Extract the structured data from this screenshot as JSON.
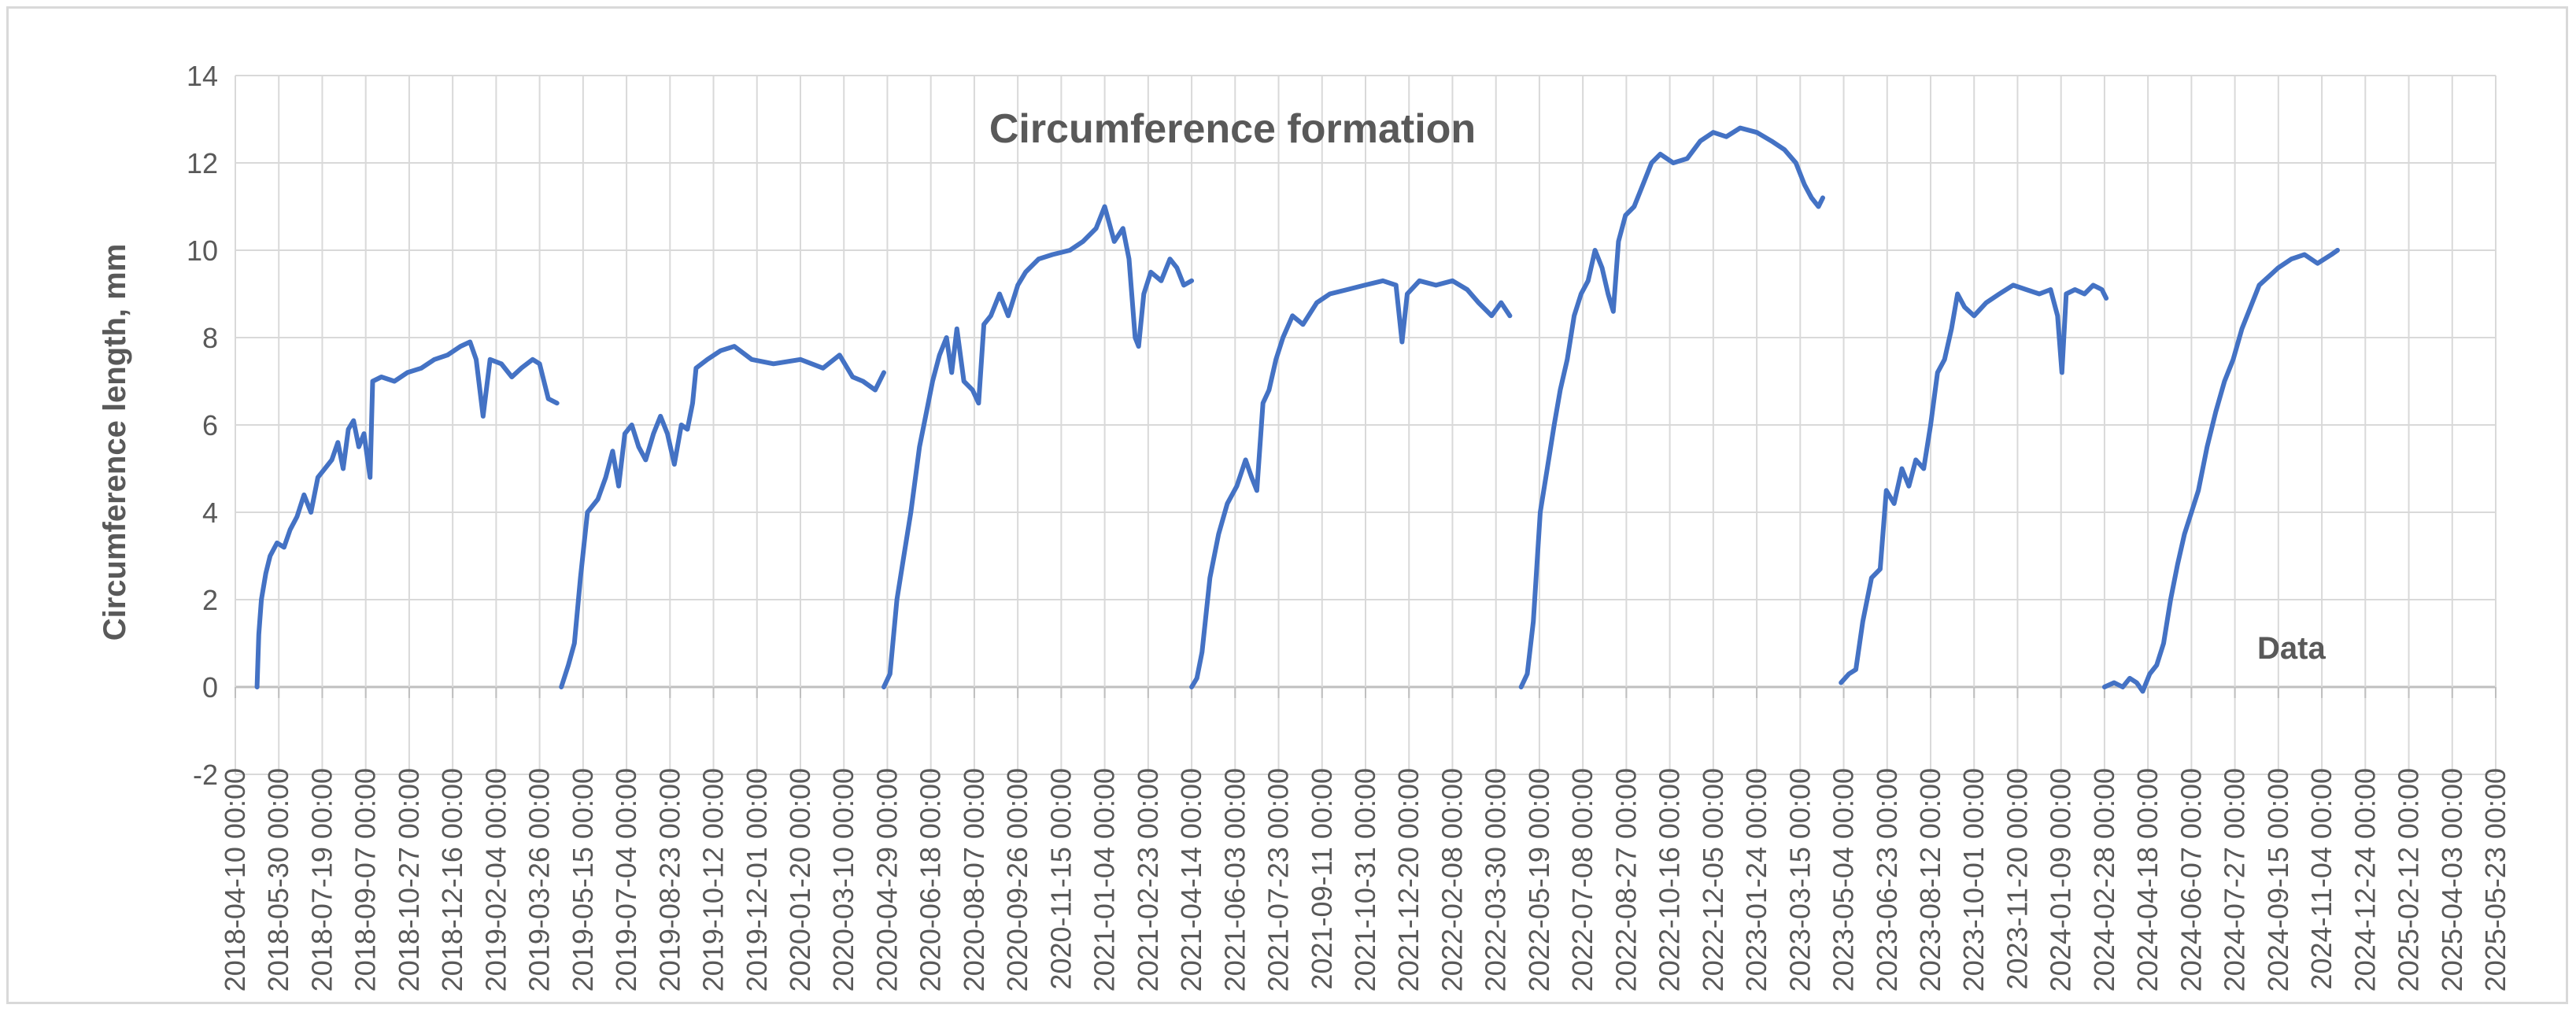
{
  "chart_data": {
    "type": "line",
    "title": "Circumference formation",
    "xlabel": "",
    "ylabel": "Circumference length, mm",
    "annotation": "Data",
    "ylim": [
      -2,
      14
    ],
    "yticks": [
      "-2",
      "0",
      "2",
      "4",
      "6",
      "8",
      "10",
      "12",
      "14"
    ],
    "grid": true,
    "legend": "none",
    "line_color": "#4472c4",
    "x_tick_labels": [
      "2018-04-10 00:00",
      "2018-05-30 00:00",
      "2018-07-19 00:00",
      "2018-09-07 00:00",
      "2018-10-27 00:00",
      "2018-12-16 00:00",
      "2019-02-04 00:00",
      "2019-03-26 00:00",
      "2019-05-15 00:00",
      "2019-07-04 00:00",
      "2019-08-23 00:00",
      "2019-10-12 00:00",
      "2019-12-01 00:00",
      "2020-01-20 00:00",
      "2020-03-10 00:00",
      "2020-04-29 00:00",
      "2020-06-18 00:00",
      "2020-08-07 00:00",
      "2020-09-26 00:00",
      "2020-11-15 00:00",
      "2021-01-04 00:00",
      "2021-02-23 00:00",
      "2021-04-14 00:00",
      "2021-06-03 00:00",
      "2021-07-23 00:00",
      "2021-09-11 00:00",
      "2021-10-31 00:00",
      "2021-12-20 00:00",
      "2022-02-08 00:00",
      "2022-03-30 00:00",
      "2022-05-19 00:00",
      "2022-07-08 00:00",
      "2022-08-27 00:00",
      "2022-10-16 00:00",
      "2022-12-05 00:00",
      "2023-01-24 00:00",
      "2023-03-15 00:00",
      "2023-05-04 00:00",
      "2023-06-23 00:00",
      "2023-08-12 00:00",
      "2023-10-01 00:00",
      "2023-11-20 00:00",
      "2024-01-09 00:00",
      "2024-02-28 00:00",
      "2024-04-18 00:00",
      "2024-06-07 00:00",
      "2024-07-27 00:00",
      "2024-09-15 00:00",
      "2024-11-04 00:00",
      "2024-12-24 00:00",
      "2025-02-12 00:00",
      "2025-04-03 00:00",
      "2025-05-23 00:00"
    ],
    "series": [
      {
        "points": [
          [
            "2018-05-05",
            0.0
          ],
          [
            "2018-05-07",
            1.2
          ],
          [
            "2018-05-10",
            2.0
          ],
          [
            "2018-05-15",
            2.6
          ],
          [
            "2018-05-20",
            3.0
          ],
          [
            "2018-05-28",
            3.3
          ],
          [
            "2018-06-05",
            3.2
          ],
          [
            "2018-06-12",
            3.6
          ],
          [
            "2018-06-20",
            3.9
          ],
          [
            "2018-06-28",
            4.4
          ],
          [
            "2018-07-06",
            4.0
          ],
          [
            "2018-07-14",
            4.8
          ],
          [
            "2018-07-22",
            5.0
          ],
          [
            "2018-07-30",
            5.2
          ],
          [
            "2018-08-06",
            5.6
          ],
          [
            "2018-08-12",
            5.0
          ],
          [
            "2018-08-18",
            5.9
          ],
          [
            "2018-08-24",
            6.1
          ],
          [
            "2018-08-30",
            5.5
          ],
          [
            "2018-09-05",
            5.8
          ],
          [
            "2018-09-12",
            4.8
          ],
          [
            "2018-09-15",
            7.0
          ],
          [
            "2018-09-25",
            7.1
          ],
          [
            "2018-10-10",
            7.0
          ],
          [
            "2018-10-25",
            7.2
          ],
          [
            "2018-11-10",
            7.3
          ],
          [
            "2018-11-25",
            7.5
          ],
          [
            "2018-12-10",
            7.6
          ],
          [
            "2018-12-25",
            7.8
          ],
          [
            "2019-01-05",
            7.9
          ],
          [
            "2019-01-12",
            7.5
          ],
          [
            "2019-01-20",
            6.2
          ],
          [
            "2019-01-28",
            7.5
          ],
          [
            "2019-02-10",
            7.4
          ],
          [
            "2019-02-22",
            7.1
          ],
          [
            "2019-03-05",
            7.3
          ],
          [
            "2019-03-18",
            7.5
          ],
          [
            "2019-03-26",
            7.4
          ],
          [
            "2019-04-05",
            6.6
          ],
          [
            "2019-04-15",
            6.5
          ]
        ]
      },
      {
        "points": [
          [
            "2019-04-20",
            0.0
          ],
          [
            "2019-04-28",
            0.5
          ],
          [
            "2019-05-05",
            1.0
          ],
          [
            "2019-05-12",
            2.5
          ],
          [
            "2019-05-20",
            4.0
          ],
          [
            "2019-06-01",
            4.3
          ],
          [
            "2019-06-10",
            4.8
          ],
          [
            "2019-06-18",
            5.4
          ],
          [
            "2019-06-25",
            4.6
          ],
          [
            "2019-07-02",
            5.8
          ],
          [
            "2019-07-10",
            6.0
          ],
          [
            "2019-07-18",
            5.5
          ],
          [
            "2019-07-26",
            5.2
          ],
          [
            "2019-08-04",
            5.8
          ],
          [
            "2019-08-12",
            6.2
          ],
          [
            "2019-08-20",
            5.8
          ],
          [
            "2019-08-28",
            5.1
          ],
          [
            "2019-09-05",
            6.0
          ],
          [
            "2019-09-12",
            5.9
          ],
          [
            "2019-09-18",
            6.5
          ],
          [
            "2019-09-22",
            7.3
          ],
          [
            "2019-10-05",
            7.5
          ],
          [
            "2019-10-20",
            7.7
          ],
          [
            "2019-11-05",
            7.8
          ],
          [
            "2019-11-25",
            7.5
          ],
          [
            "2019-12-20",
            7.4
          ],
          [
            "2020-01-20",
            7.5
          ],
          [
            "2020-02-15",
            7.3
          ],
          [
            "2020-03-05",
            7.6
          ],
          [
            "2020-03-20",
            7.1
          ],
          [
            "2020-04-01",
            7.0
          ],
          [
            "2020-04-15",
            6.8
          ],
          [
            "2020-04-25",
            7.2
          ]
        ]
      },
      {
        "points": [
          [
            "2020-04-25",
            0.0
          ],
          [
            "2020-05-02",
            0.3
          ],
          [
            "2020-05-10",
            2.0
          ],
          [
            "2020-05-18",
            3.0
          ],
          [
            "2020-05-26",
            4.0
          ],
          [
            "2020-06-05",
            5.5
          ],
          [
            "2020-06-12",
            6.2
          ],
          [
            "2020-06-20",
            7.0
          ],
          [
            "2020-06-28",
            7.6
          ],
          [
            "2020-07-06",
            8.0
          ],
          [
            "2020-07-12",
            7.2
          ],
          [
            "2020-07-18",
            8.2
          ],
          [
            "2020-07-26",
            7.0
          ],
          [
            "2020-08-05",
            6.8
          ],
          [
            "2020-08-12",
            6.5
          ],
          [
            "2020-08-18",
            8.3
          ],
          [
            "2020-08-26",
            8.5
          ],
          [
            "2020-09-05",
            9.0
          ],
          [
            "2020-09-15",
            8.5
          ],
          [
            "2020-09-26",
            9.2
          ],
          [
            "2020-10-05",
            9.5
          ],
          [
            "2020-10-20",
            9.8
          ],
          [
            "2020-11-05",
            9.9
          ],
          [
            "2020-11-25",
            10.0
          ],
          [
            "2020-12-10",
            10.2
          ],
          [
            "2020-12-25",
            10.5
          ],
          [
            "2021-01-04",
            11.0
          ],
          [
            "2021-01-15",
            10.2
          ],
          [
            "2021-01-25",
            10.5
          ],
          [
            "2021-02-01",
            9.8
          ],
          [
            "2021-02-08",
            8.0
          ],
          [
            "2021-02-12",
            7.8
          ],
          [
            "2021-02-18",
            9.0
          ],
          [
            "2021-02-26",
            9.5
          ],
          [
            "2021-03-10",
            9.3
          ],
          [
            "2021-03-20",
            9.8
          ],
          [
            "2021-03-28",
            9.6
          ],
          [
            "2021-04-05",
            9.2
          ],
          [
            "2021-04-14",
            9.3
          ]
        ]
      },
      {
        "points": [
          [
            "2021-04-14",
            0.0
          ],
          [
            "2021-04-20",
            0.2
          ],
          [
            "2021-04-26",
            0.8
          ],
          [
            "2021-05-05",
            2.5
          ],
          [
            "2021-05-15",
            3.5
          ],
          [
            "2021-05-25",
            4.2
          ],
          [
            "2021-06-05",
            4.6
          ],
          [
            "2021-06-15",
            5.2
          ],
          [
            "2021-06-22",
            4.8
          ],
          [
            "2021-06-28",
            4.5
          ],
          [
            "2021-07-05",
            6.5
          ],
          [
            "2021-07-12",
            6.8
          ],
          [
            "2021-07-20",
            7.5
          ],
          [
            "2021-07-28",
            8.0
          ],
          [
            "2021-08-08",
            8.5
          ],
          [
            "2021-08-20",
            8.3
          ],
          [
            "2021-09-05",
            8.8
          ],
          [
            "2021-09-20",
            9.0
          ],
          [
            "2021-10-10",
            9.1
          ],
          [
            "2021-10-30",
            9.2
          ],
          [
            "2021-11-20",
            9.3
          ],
          [
            "2021-12-05",
            9.2
          ],
          [
            "2021-12-12",
            7.9
          ],
          [
            "2021-12-18",
            9.0
          ],
          [
            "2022-01-01",
            9.3
          ],
          [
            "2022-01-20",
            9.2
          ],
          [
            "2022-02-08",
            9.3
          ],
          [
            "2022-02-25",
            9.1
          ],
          [
            "2022-03-10",
            8.8
          ],
          [
            "2022-03-25",
            8.5
          ],
          [
            "2022-04-05",
            8.8
          ],
          [
            "2022-04-15",
            8.5
          ]
        ]
      },
      {
        "points": [
          [
            "2022-04-28",
            0.0
          ],
          [
            "2022-05-05",
            0.3
          ],
          [
            "2022-05-12",
            1.5
          ],
          [
            "2022-05-20",
            4.0
          ],
          [
            "2022-05-28",
            5.0
          ],
          [
            "2022-06-05",
            6.0
          ],
          [
            "2022-06-12",
            6.8
          ],
          [
            "2022-06-20",
            7.5
          ],
          [
            "2022-06-28",
            8.5
          ],
          [
            "2022-07-06",
            9.0
          ],
          [
            "2022-07-14",
            9.3
          ],
          [
            "2022-07-22",
            10.0
          ],
          [
            "2022-07-30",
            9.6
          ],
          [
            "2022-08-06",
            9.0
          ],
          [
            "2022-08-12",
            8.6
          ],
          [
            "2022-08-18",
            10.2
          ],
          [
            "2022-08-26",
            10.8
          ],
          [
            "2022-09-05",
            11.0
          ],
          [
            "2022-09-15",
            11.5
          ],
          [
            "2022-09-25",
            12.0
          ],
          [
            "2022-10-05",
            12.2
          ],
          [
            "2022-10-20",
            12.0
          ],
          [
            "2022-11-05",
            12.1
          ],
          [
            "2022-11-20",
            12.5
          ],
          [
            "2022-12-05",
            12.7
          ],
          [
            "2022-12-20",
            12.6
          ],
          [
            "2023-01-05",
            12.8
          ],
          [
            "2023-01-24",
            12.7
          ],
          [
            "2023-02-10",
            12.5
          ],
          [
            "2023-02-25",
            12.3
          ],
          [
            "2023-03-10",
            12.0
          ],
          [
            "2023-03-20",
            11.5
          ],
          [
            "2023-03-28",
            11.2
          ],
          [
            "2023-04-05",
            11.0
          ],
          [
            "2023-04-10",
            11.2
          ]
        ]
      },
      {
        "points": [
          [
            "2023-05-01",
            0.1
          ],
          [
            "2023-05-10",
            0.3
          ],
          [
            "2023-05-18",
            0.4
          ],
          [
            "2023-05-26",
            1.5
          ],
          [
            "2023-06-05",
            2.5
          ],
          [
            "2023-06-15",
            2.7
          ],
          [
            "2023-06-22",
            4.5
          ],
          [
            "2023-07-01",
            4.2
          ],
          [
            "2023-07-10",
            5.0
          ],
          [
            "2023-07-18",
            4.6
          ],
          [
            "2023-07-26",
            5.2
          ],
          [
            "2023-08-04",
            5.0
          ],
          [
            "2023-08-12",
            6.0
          ],
          [
            "2023-08-20",
            7.2
          ],
          [
            "2023-08-28",
            7.5
          ],
          [
            "2023-09-05",
            8.2
          ],
          [
            "2023-09-12",
            9.0
          ],
          [
            "2023-09-20",
            8.7
          ],
          [
            "2023-10-01",
            8.5
          ],
          [
            "2023-10-15",
            8.8
          ],
          [
            "2023-10-30",
            9.0
          ],
          [
            "2023-11-15",
            9.2
          ],
          [
            "2023-11-30",
            9.1
          ],
          [
            "2023-12-15",
            9.0
          ],
          [
            "2023-12-28",
            9.1
          ],
          [
            "2024-01-05",
            8.5
          ],
          [
            "2024-01-10",
            7.2
          ],
          [
            "2024-01-15",
            9.0
          ],
          [
            "2024-01-25",
            9.1
          ],
          [
            "2024-02-05",
            9.0
          ],
          [
            "2024-02-15",
            9.2
          ],
          [
            "2024-02-25",
            9.1
          ],
          [
            "2024-03-01",
            8.9
          ]
        ]
      },
      {
        "points": [
          [
            "2024-02-28",
            0.0
          ],
          [
            "2024-03-10",
            0.1
          ],
          [
            "2024-03-20",
            0.0
          ],
          [
            "2024-03-28",
            0.2
          ],
          [
            "2024-04-05",
            0.1
          ],
          [
            "2024-04-12",
            -0.1
          ],
          [
            "2024-04-20",
            0.3
          ],
          [
            "2024-04-28",
            0.5
          ],
          [
            "2024-05-06",
            1.0
          ],
          [
            "2024-05-14",
            2.0
          ],
          [
            "2024-05-22",
            2.8
          ],
          [
            "2024-05-30",
            3.5
          ],
          [
            "2024-06-07",
            4.0
          ],
          [
            "2024-06-15",
            4.5
          ],
          [
            "2024-06-25",
            5.5
          ],
          [
            "2024-07-05",
            6.3
          ],
          [
            "2024-07-15",
            7.0
          ],
          [
            "2024-07-25",
            7.5
          ],
          [
            "2024-08-04",
            8.2
          ],
          [
            "2024-08-14",
            8.7
          ],
          [
            "2024-08-24",
            9.2
          ],
          [
            "2024-09-04",
            9.4
          ],
          [
            "2024-09-15",
            9.6
          ],
          [
            "2024-09-30",
            9.8
          ],
          [
            "2024-10-15",
            9.9
          ],
          [
            "2024-10-30",
            9.7
          ],
          [
            "2024-11-15",
            9.9
          ],
          [
            "2024-11-22",
            10.0
          ]
        ]
      }
    ]
  }
}
